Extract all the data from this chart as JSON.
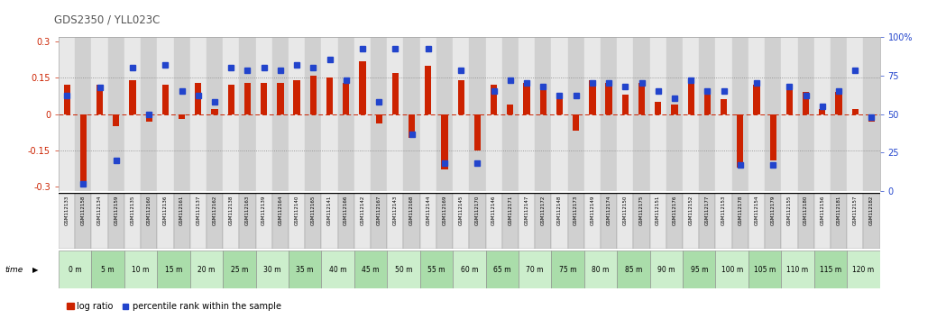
{
  "title": "GDS2350 / YLL023C",
  "samples": [
    "GSM112133",
    "GSM112158",
    "GSM112134",
    "GSM112159",
    "GSM112135",
    "GSM112160",
    "GSM112136",
    "GSM112161",
    "GSM112137",
    "GSM112162",
    "GSM112138",
    "GSM112163",
    "GSM112139",
    "GSM112164",
    "GSM112140",
    "GSM112165",
    "GSM112141",
    "GSM112166",
    "GSM112142",
    "GSM112167",
    "GSM112143",
    "GSM112168",
    "GSM112144",
    "GSM112169",
    "GSM112145",
    "GSM112170",
    "GSM112146",
    "GSM112171",
    "GSM112147",
    "GSM112172",
    "GSM112148",
    "GSM112173",
    "GSM112149",
    "GSM112174",
    "GSM112150",
    "GSM112175",
    "GSM112151",
    "GSM112176",
    "GSM112152",
    "GSM112177",
    "GSM112153",
    "GSM112178",
    "GSM112154",
    "GSM112179",
    "GSM112155",
    "GSM112180",
    "GSM112156",
    "GSM112181",
    "GSM112157",
    "GSM112182"
  ],
  "time_group_labels": [
    "0 m",
    "5 m",
    "10 m",
    "15 m",
    "20 m",
    "25 m",
    "30 m",
    "35 m",
    "40 m",
    "45 m",
    "50 m",
    "55 m",
    "60 m",
    "65 m",
    "70 m",
    "75 m",
    "80 m",
    "85 m",
    "90 m",
    "95 m",
    "100 m",
    "105 m",
    "110 m",
    "115 m",
    "120 m"
  ],
  "log_ratio": [
    0.12,
    -0.3,
    0.12,
    -0.05,
    0.14,
    -0.03,
    0.12,
    -0.02,
    0.13,
    0.02,
    0.12,
    0.13,
    0.13,
    0.13,
    0.14,
    0.16,
    0.15,
    0.13,
    0.22,
    -0.04,
    0.17,
    -0.1,
    0.2,
    -0.23,
    0.14,
    -0.15,
    0.12,
    0.04,
    0.13,
    0.11,
    0.07,
    -0.07,
    0.14,
    0.13,
    0.08,
    0.13,
    0.05,
    0.04,
    0.13,
    0.08,
    0.06,
    -0.22,
    0.12,
    -0.19,
    0.12,
    0.09,
    0.02,
    0.09,
    0.02,
    -0.03
  ],
  "percentile": [
    62,
    5,
    67,
    20,
    80,
    50,
    82,
    65,
    62,
    58,
    80,
    78,
    80,
    78,
    82,
    80,
    85,
    72,
    92,
    58,
    92,
    37,
    92,
    18,
    78,
    18,
    65,
    72,
    70,
    68,
    62,
    62,
    70,
    70,
    68,
    70,
    65,
    60,
    72,
    65,
    65,
    17,
    70,
    17,
    68,
    62,
    55,
    65,
    78,
    48
  ],
  "ylim_left": [
    -0.32,
    0.32
  ],
  "yticks_left": [
    -0.3,
    -0.15,
    0.0,
    0.15,
    0.3
  ],
  "ytick_labels_left": [
    "-0.3",
    "-0.15",
    "0",
    "0.15",
    "0.3"
  ],
  "ylim_right": [
    0,
    100
  ],
  "yticks_right": [
    0,
    25,
    50,
    75,
    100
  ],
  "ytick_labels_right": [
    "0",
    "25",
    "50",
    "75",
    "100%"
  ],
  "bar_color": "#cc2200",
  "dot_color": "#2244cc",
  "bg_color_odd": "#e8e8e8",
  "bg_color_even": "#d0d0d0",
  "time_bg_odd": "#cceecc",
  "time_bg_even": "#aaddaa",
  "hline_zero_color": "#cc2200",
  "hline_dotted_color": "#888888",
  "title_color": "#555555",
  "figure_bg": "#ffffff"
}
